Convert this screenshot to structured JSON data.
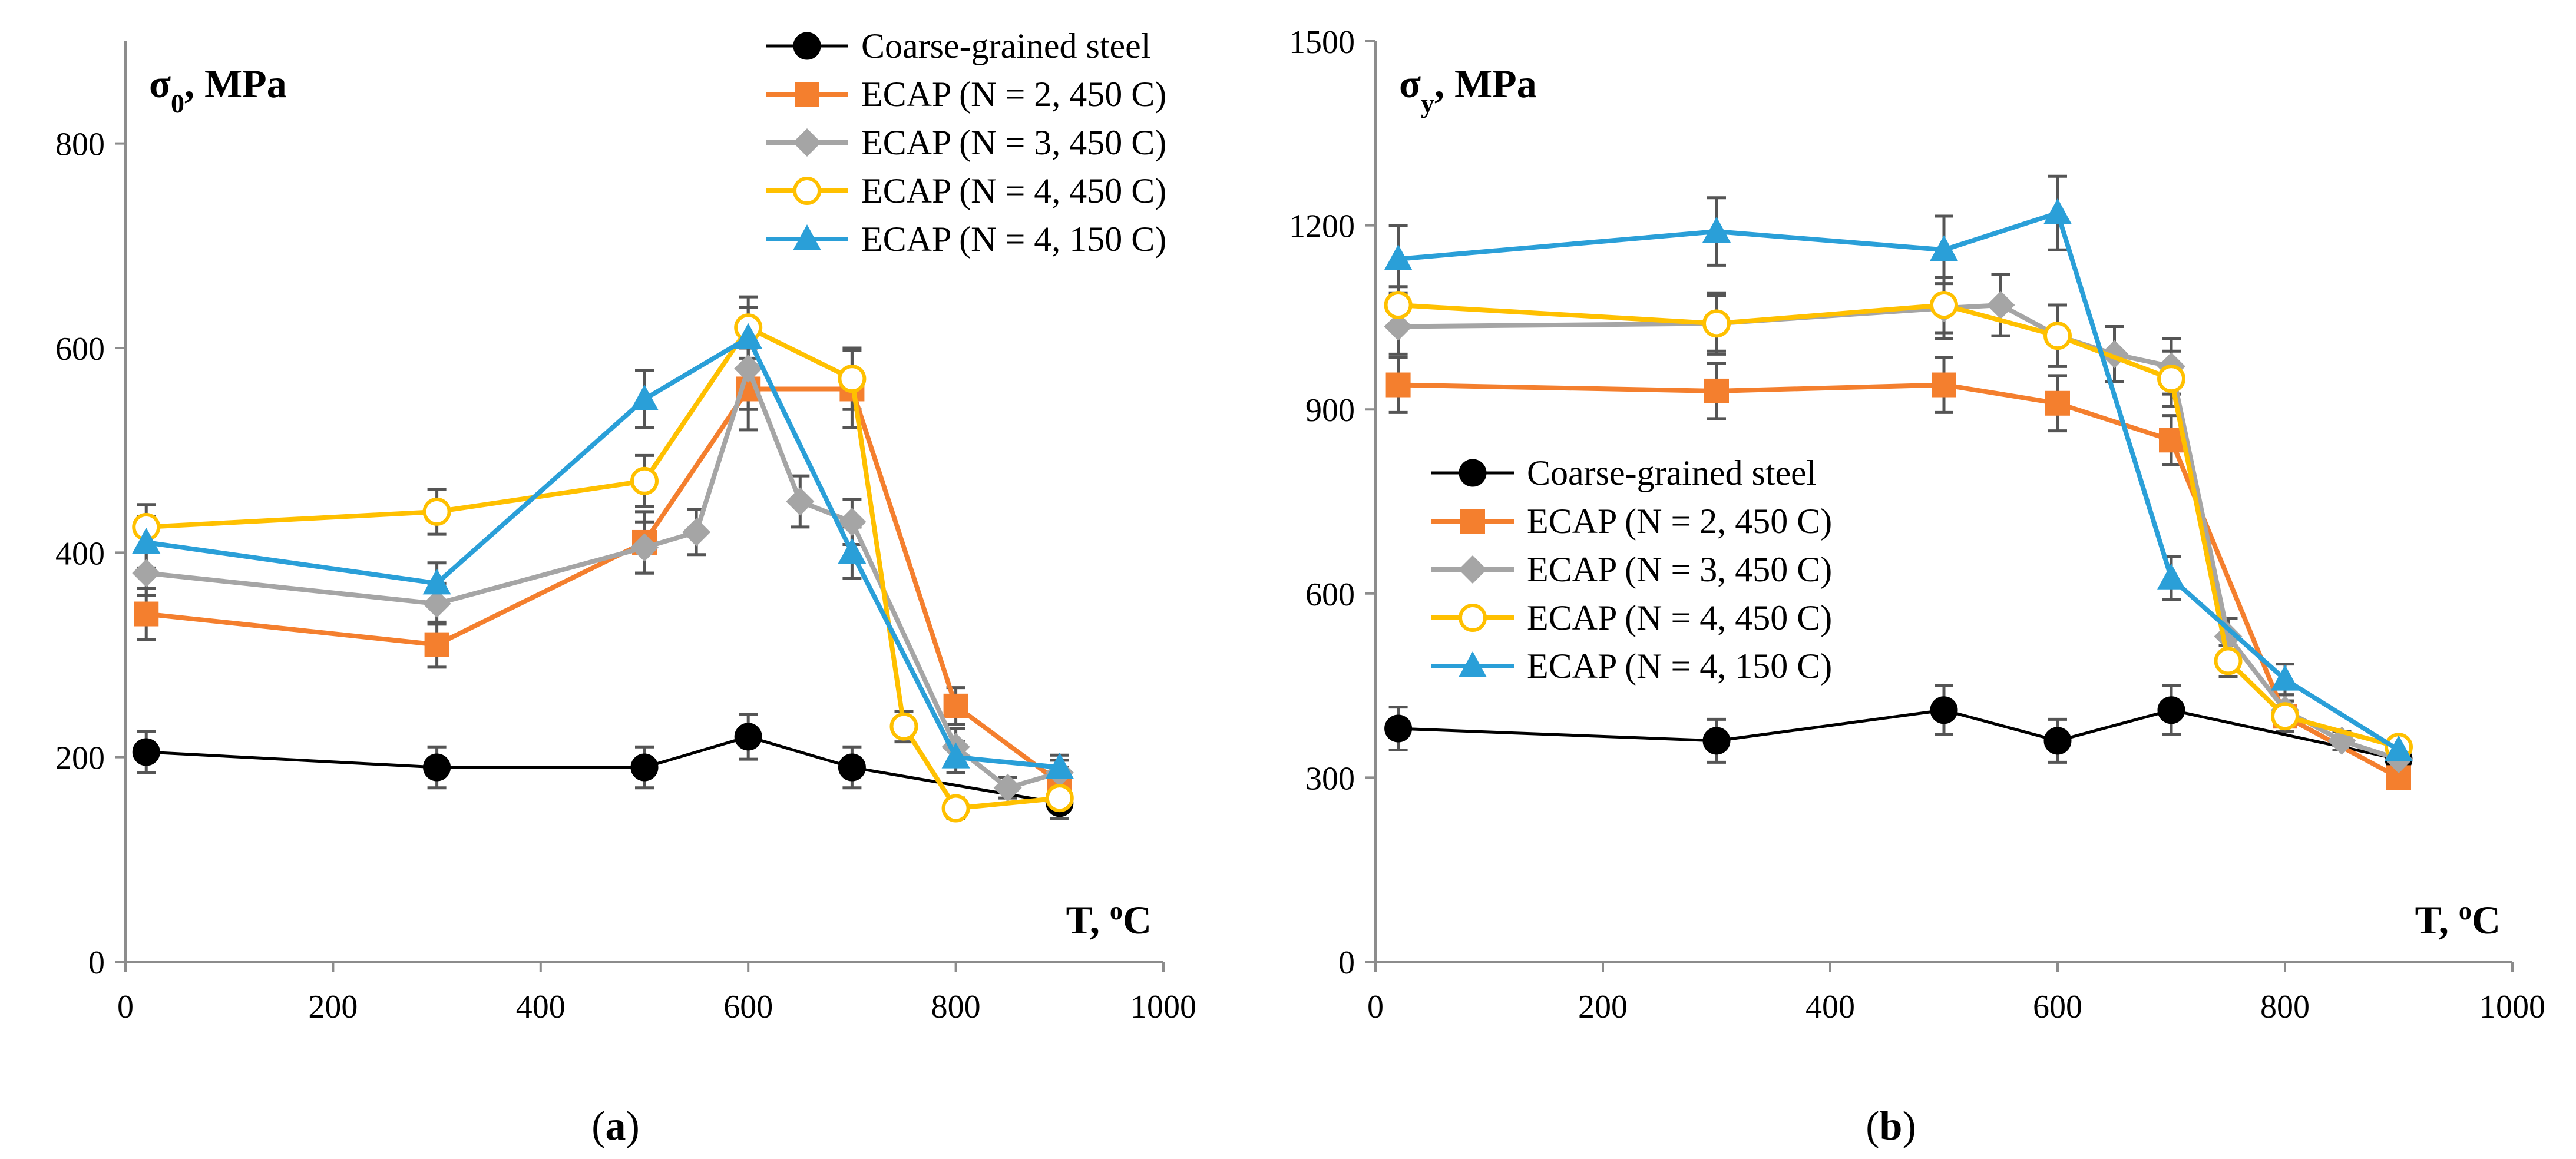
{
  "figure": {
    "panels": [
      {
        "label_open": "(",
        "label_letter": "a",
        "label_close": ")"
      },
      {
        "label_open": "(",
        "label_letter": "b",
        "label_close": ")"
      }
    ]
  },
  "colors": {
    "coarse": "#000000",
    "ecap_n2_450": "#F47F2E",
    "ecap_n3_450": "#A5A5A5",
    "ecap_n4_450": "#FFC000",
    "ecap_n4_150": "#2A9FD8",
    "error_bar": "#555555",
    "axis": "#8C8C8C"
  },
  "chart_data": [
    {
      "type": "line",
      "panel": "a",
      "ylabel_symbol": "σ",
      "ylabel_sub": "0",
      "ylabel_unit": ", MPa",
      "xlabel_main": "T, ",
      "xlabel_sup": "o",
      "xlabel_unit": "C",
      "xlim": [
        0,
        1000
      ],
      "ylim": [
        0,
        900
      ],
      "xticks": [
        "0",
        "200",
        "400",
        "600",
        "800",
        "1000"
      ],
      "yticks": [
        "0",
        "200",
        "400",
        "600",
        "800"
      ],
      "legend_position": "top-right",
      "series": [
        {
          "key": "coarse",
          "name": "Coarse-grained steel",
          "marker": "circle",
          "x": [
            20,
            300,
            500,
            600,
            700,
            900
          ],
          "y": [
            205,
            190,
            190,
            220,
            190,
            155
          ],
          "err": [
            20,
            20,
            20,
            22,
            20,
            15
          ]
        },
        {
          "key": "ecap_n2_450",
          "name": "ECAP (N = 2, 450 C)",
          "marker": "square",
          "x": [
            20,
            300,
            500,
            600,
            700,
            800,
            900
          ],
          "y": [
            340,
            310,
            410,
            560,
            560,
            250,
            175
          ],
          "err": [
            25,
            22,
            30,
            40,
            38,
            18,
            15
          ]
        },
        {
          "key": "ecap_n3_450",
          "name": "ECAP (N = 3, 450 C)",
          "marker": "diamond",
          "x": [
            20,
            300,
            500,
            550,
            600,
            650,
            700,
            800,
            850,
            900
          ],
          "y": [
            380,
            350,
            405,
            420,
            580,
            450,
            430,
            210,
            170,
            185
          ],
          "err": [
            22,
            20,
            25,
            22,
            40,
            25,
            22,
            18,
            10,
            12
          ]
        },
        {
          "key": "ecap_n4_450",
          "name": "ECAP (N = 4, 450 C)",
          "marker": "open-circle",
          "x": [
            20,
            300,
            500,
            600,
            700,
            750,
            800,
            900
          ],
          "y": [
            425,
            440,
            470,
            620,
            570,
            230,
            150,
            160
          ],
          "err": [
            22,
            22,
            25,
            30,
            30,
            15,
            10,
            12
          ]
        },
        {
          "key": "ecap_n4_150",
          "name": "ECAP (N = 4, 150 C)",
          "marker": "triangle",
          "x": [
            20,
            300,
            500,
            600,
            700,
            800,
            900
          ],
          "y": [
            410,
            370,
            550,
            610,
            400,
            200,
            190
          ],
          "err": [
            25,
            20,
            28,
            30,
            25,
            15,
            12
          ]
        }
      ]
    },
    {
      "type": "line",
      "panel": "b",
      "ylabel_symbol": "σ",
      "ylabel_sub": "y",
      "ylabel_unit": ", MPa",
      "xlabel_main": "T, ",
      "xlabel_sup": "o",
      "xlabel_unit": "C",
      "xlim": [
        0,
        1000
      ],
      "ylim": [
        0,
        1500
      ],
      "xticks": [
        "0",
        "200",
        "400",
        "600",
        "800",
        "1000"
      ],
      "yticks": [
        "0",
        "300",
        "600",
        "900",
        "1200",
        "1500"
      ],
      "legend_position": "middle-left",
      "series": [
        {
          "key": "coarse",
          "name": "Coarse-grained steel",
          "marker": "circle",
          "x": [
            20,
            300,
            500,
            600,
            700,
            900
          ],
          "y": [
            380,
            360,
            410,
            360,
            410,
            330
          ],
          "err": [
            35,
            35,
            40,
            35,
            40,
            30
          ]
        },
        {
          "key": "ecap_n2_450",
          "name": "ECAP (N = 2, 450 C)",
          "marker": "square",
          "x": [
            20,
            300,
            500,
            600,
            700,
            800,
            900
          ],
          "y": [
            940,
            930,
            940,
            910,
            850,
            400,
            300
          ],
          "err": [
            45,
            45,
            45,
            45,
            40,
            25,
            15
          ]
        },
        {
          "key": "ecap_n3_450",
          "name": "ECAP (N = 3, 450 C)",
          "marker": "diamond",
          "x": [
            20,
            300,
            500,
            550,
            600,
            650,
            700,
            750,
            800,
            850,
            900
          ],
          "y": [
            1035,
            1040,
            1065,
            1070,
            1020,
            990,
            970,
            530,
            410,
            360,
            330
          ],
          "err": [
            45,
            45,
            50,
            50,
            50,
            45,
            45,
            30,
            25,
            15,
            15
          ]
        },
        {
          "key": "ecap_n4_450",
          "name": "ECAP (N = 4, 450 C)",
          "marker": "open-circle",
          "x": [
            20,
            300,
            500,
            600,
            700,
            750,
            800,
            900
          ],
          "y": [
            1070,
            1040,
            1070,
            1020,
            950,
            490,
            400,
            350
          ],
          "err": [
            30,
            50,
            45,
            50,
            45,
            25,
            25,
            15
          ]
        },
        {
          "key": "ecap_n4_150",
          "name": "ECAP (N = 4, 150 C)",
          "marker": "triangle",
          "x": [
            20,
            300,
            500,
            600,
            700,
            800,
            900
          ],
          "y": [
            1145,
            1190,
            1160,
            1220,
            625,
            460,
            345
          ],
          "err": [
            55,
            55,
            55,
            60,
            35,
            25,
            15
          ]
        }
      ]
    }
  ]
}
